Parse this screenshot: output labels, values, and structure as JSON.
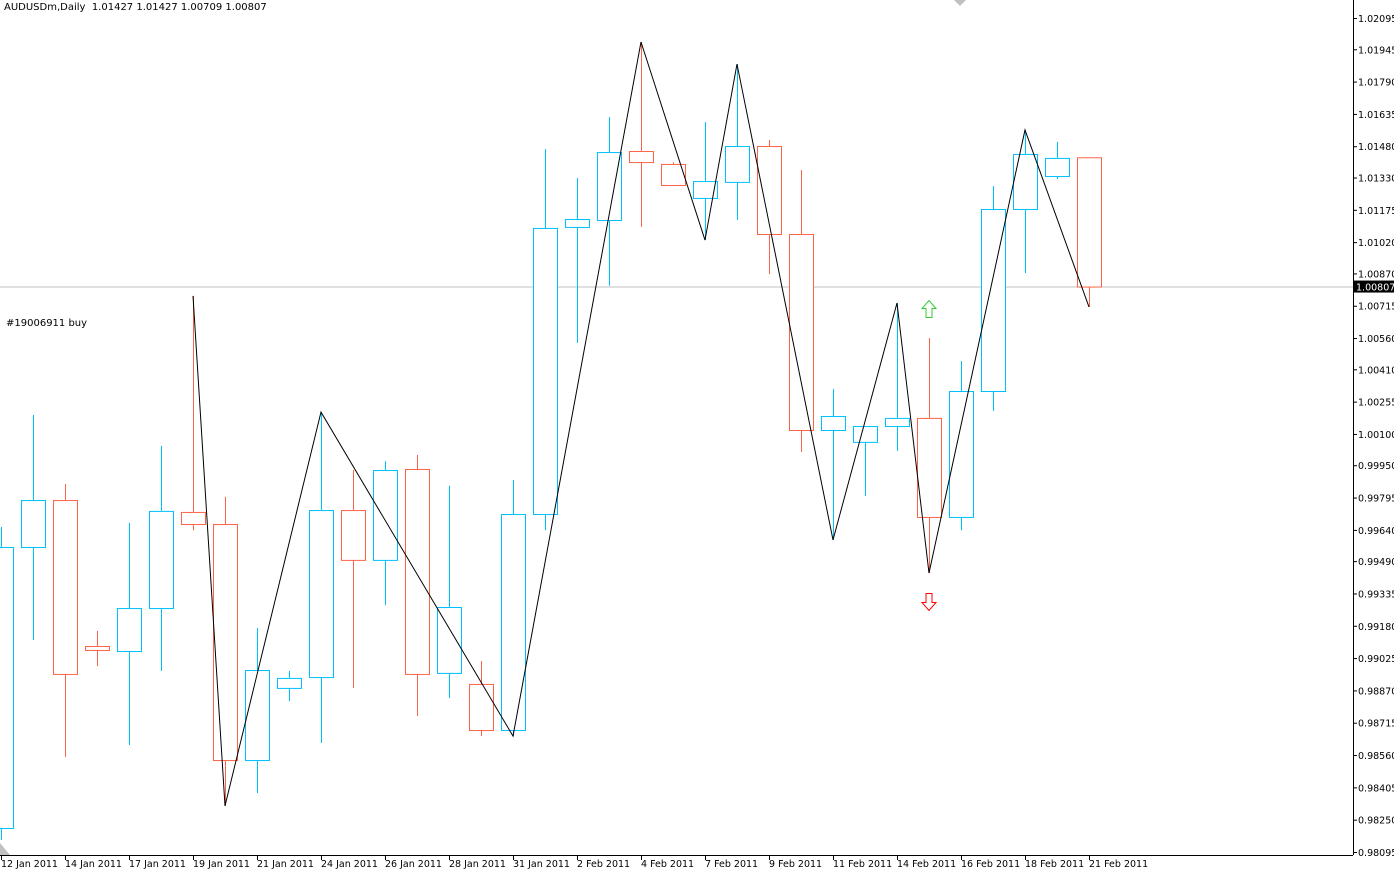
{
  "header": {
    "symbol": "AUDUSDm,Daily",
    "ohlc": "1.01427 1.01427 1.00709 1.00807"
  },
  "order_label": "#19006911 buy",
  "current_price": "1.00807",
  "colors": {
    "bull": "#00BFFF",
    "bear": "#FF6347",
    "zigzag": "#000000",
    "price_line": "#C0C0C0",
    "arrow_up": "#32CD32",
    "arrow_down": "#FF0000"
  },
  "chart_data": {
    "type": "candlestick",
    "title": "AUDUSDm,Daily",
    "ylim": [
      0.98095,
      1.02095
    ],
    "grid": false,
    "y_ticks": [
      "1.02095",
      "1.01945",
      "1.01790",
      "1.01635",
      "1.01480",
      "1.01330",
      "1.01175",
      "1.01020",
      "1.00870",
      "1.00715",
      "1.00560",
      "1.00410",
      "1.00255",
      "1.00100",
      "0.99950",
      "0.99795",
      "0.99640",
      "0.99490",
      "0.99335",
      "0.99180",
      "0.99025",
      "0.98870",
      "0.98715",
      "0.98560",
      "0.98405",
      "0.98250",
      "0.98095"
    ],
    "x_ticks": [
      {
        "bar": 0,
        "label": "12 Jan 2011"
      },
      {
        "bar": 2,
        "label": "14 Jan 2011"
      },
      {
        "bar": 4,
        "label": "17 Jan 2011"
      },
      {
        "bar": 6,
        "label": "19 Jan 2011"
      },
      {
        "bar": 8,
        "label": "21 Jan 2011"
      },
      {
        "bar": 10,
        "label": "24 Jan 2011"
      },
      {
        "bar": 12,
        "label": "26 Jan 2011"
      },
      {
        "bar": 14,
        "label": "28 Jan 2011"
      },
      {
        "bar": 16,
        "label": "31 Jan 2011"
      },
      {
        "bar": 18,
        "label": "2 Feb 2011"
      },
      {
        "bar": 20,
        "label": "4 Feb 2011"
      },
      {
        "bar": 22,
        "label": "7 Feb 2011"
      },
      {
        "bar": 24,
        "label": "9 Feb 2011"
      },
      {
        "bar": 26,
        "label": "11 Feb 2011"
      },
      {
        "bar": 28,
        "label": "14 Feb 2011"
      },
      {
        "bar": 30,
        "label": "16 Feb 2011"
      },
      {
        "bar": 32,
        "label": "18 Feb 2011"
      },
      {
        "bar": 34,
        "label": "21 Feb 2011"
      }
    ],
    "candles": [
      [
        0.9821,
        0.99654,
        0.98153,
        0.99558
      ],
      [
        0.99558,
        1.00191,
        0.99112,
        0.99783
      ],
      [
        0.99783,
        0.9986,
        0.98551,
        0.98949
      ],
      [
        0.99083,
        0.99155,
        0.98987,
        0.99064
      ],
      [
        0.99059,
        0.99673,
        0.98608,
        0.99265
      ],
      [
        0.99265,
        1.00042,
        0.98963,
        0.99731
      ],
      [
        0.99726,
        1.00762,
        0.99639,
        0.99668
      ],
      [
        0.99668,
        0.99798,
        0.98316,
        0.98536
      ],
      [
        0.98536,
        0.99169,
        0.98378,
        0.98968
      ],
      [
        0.98882,
        0.98963,
        0.98819,
        0.9893
      ],
      [
        0.98934,
        1.00205,
        0.98618,
        0.99735
      ],
      [
        0.99735,
        0.99927,
        0.98882,
        0.99496
      ],
      [
        0.99496,
        0.9997,
        0.9928,
        0.99927
      ],
      [
        0.99932,
        0.99999,
        0.98747,
        0.98949
      ],
      [
        0.98954,
        0.99851,
        0.98834,
        0.9927
      ],
      [
        0.98901,
        0.99011,
        0.98651,
        0.9868
      ],
      [
        0.9868,
        0.99879,
        0.98651,
        0.99716
      ],
      [
        0.99716,
        1.01467,
        0.99639,
        1.01088
      ],
      [
        1.01093,
        1.01328,
        1.00536,
        1.01131
      ],
      [
        1.01126,
        1.0162,
        1.0081,
        1.01452
      ],
      [
        1.01457,
        1.0198,
        1.01093,
        1.01404
      ],
      [
        1.01395,
        1.01404,
        1.01294,
        1.01294
      ],
      [
        1.01232,
        1.01596,
        1.0103,
        1.01313
      ],
      [
        1.01309,
        1.01874,
        1.01126,
        1.01481
      ],
      [
        1.01481,
        1.0151,
        1.00867,
        1.01059
      ],
      [
        1.01059,
        1.01366,
        1.00014,
        1.00119
      ],
      [
        1.00119,
        1.00316,
        0.99592,
        1.00186
      ],
      [
        1.00062,
        1.00138,
        0.99803,
        1.00138
      ],
      [
        1.00138,
        1.00728,
        1.00018,
        1.00177
      ],
      [
        1.00177,
        1.0056,
        0.99433,
        0.99702
      ],
      [
        0.99702,
        1.0045,
        0.99639,
        1.00306
      ],
      [
        1.00306,
        1.01289,
        1.0021,
        1.01179
      ],
      [
        1.01179,
        1.01558,
        1.00872,
        1.01443
      ],
      [
        1.01337,
        1.015,
        1.01323,
        1.01424
      ],
      [
        1.01427,
        1.01427,
        1.00709,
        1.00807
      ]
    ],
    "candle_fields": [
      "open",
      "high",
      "low",
      "close"
    ],
    "zigzag": [
      [
        6,
        1.00762
      ],
      [
        7,
        0.98316
      ],
      [
        10,
        1.00205
      ],
      [
        16,
        0.98651
      ],
      [
        20,
        1.0198
      ],
      [
        22,
        1.0103
      ],
      [
        23,
        1.01874
      ],
      [
        26,
        0.99592
      ],
      [
        28,
        1.00728
      ],
      [
        29,
        0.99433
      ],
      [
        32,
        1.01558
      ],
      [
        34,
        1.00709
      ]
    ],
    "arrows": [
      {
        "bar": 29,
        "direction": "up",
        "price": 1.0074
      },
      {
        "bar": 29,
        "direction": "down",
        "price": 0.99335
      }
    ]
  }
}
